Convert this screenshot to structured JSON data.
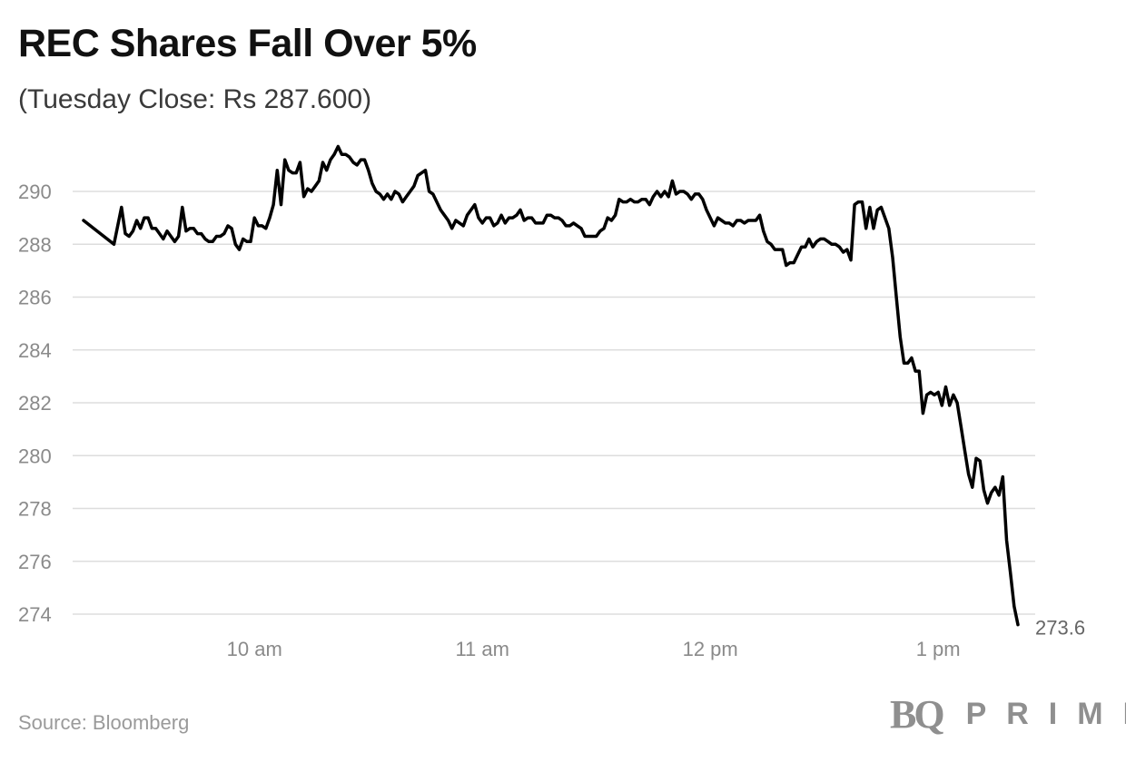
{
  "header": {
    "title": "REC Shares Fall Over 5%",
    "subtitle": "(Tuesday Close: Rs 287.600)"
  },
  "footer": {
    "source": "Source: Bloomberg",
    "logo_mark": "BQ",
    "logo_word": "PRIME"
  },
  "colors": {
    "line": "#000000",
    "grid": "#dddddd",
    "axis_text": "#8a8a8a"
  },
  "chart_data": {
    "type": "line",
    "title": "REC Shares Fall Over 5%",
    "subtitle": "(Tuesday Close: Rs 287.600)",
    "xlabel": "",
    "ylabel": "",
    "grid": true,
    "legend": "none",
    "x_unit": "minutes since 9:00",
    "xlim": [
      15,
      320
    ],
    "ylim": [
      273.4,
      291.8
    ],
    "yticks": [
      274,
      276,
      278,
      280,
      282,
      284,
      286,
      288,
      290
    ],
    "xticks": [
      {
        "value": 60,
        "label": "10 am"
      },
      {
        "value": 120,
        "label": "11 am"
      },
      {
        "value": 180,
        "label": "12 pm"
      },
      {
        "value": 240,
        "label": "1 pm"
      }
    ],
    "end_label": "273.6",
    "series": [
      {
        "points": [
          [
            15,
            288.9
          ],
          [
            23,
            288.0
          ],
          [
            25,
            289.4
          ],
          [
            26,
            288.4
          ],
          [
            27,
            288.3
          ],
          [
            28,
            288.5
          ],
          [
            29,
            288.9
          ],
          [
            30,
            288.6
          ],
          [
            31,
            289.0
          ],
          [
            32,
            289.0
          ],
          [
            33,
            288.6
          ],
          [
            34,
            288.6
          ],
          [
            35,
            288.4
          ],
          [
            36,
            288.2
          ],
          [
            37,
            288.5
          ],
          [
            38,
            288.3
          ],
          [
            39,
            288.1
          ],
          [
            40,
            288.3
          ],
          [
            41,
            289.4
          ],
          [
            42,
            288.5
          ],
          [
            43,
            288.6
          ],
          [
            44,
            288.6
          ],
          [
            45,
            288.4
          ],
          [
            46,
            288.4
          ],
          [
            47,
            288.2
          ],
          [
            48,
            288.1
          ],
          [
            49,
            288.1
          ],
          [
            50,
            288.3
          ],
          [
            51,
            288.3
          ],
          [
            52,
            288.4
          ],
          [
            53,
            288.7
          ],
          [
            54,
            288.6
          ],
          [
            55,
            288.0
          ],
          [
            56,
            287.8
          ],
          [
            57,
            288.2
          ],
          [
            58,
            288.1
          ],
          [
            59,
            288.1
          ],
          [
            60,
            289.0
          ],
          [
            61,
            288.7
          ],
          [
            62,
            288.7
          ],
          [
            63,
            288.6
          ],
          [
            64,
            289.0
          ],
          [
            65,
            289.5
          ],
          [
            66,
            290.8
          ],
          [
            67,
            289.5
          ],
          [
            68,
            291.2
          ],
          [
            69,
            290.8
          ],
          [
            70,
            290.7
          ],
          [
            71,
            290.7
          ],
          [
            72,
            291.1
          ],
          [
            73,
            289.8
          ],
          [
            74,
            290.1
          ],
          [
            75,
            290.0
          ],
          [
            76,
            290.2
          ],
          [
            77,
            290.4
          ],
          [
            78,
            291.1
          ],
          [
            79,
            290.8
          ],
          [
            80,
            291.2
          ],
          [
            81,
            291.4
          ],
          [
            82,
            291.7
          ],
          [
            83,
            291.4
          ],
          [
            84,
            291.4
          ],
          [
            85,
            291.3
          ],
          [
            86,
            291.1
          ],
          [
            87,
            291.0
          ],
          [
            88,
            291.2
          ],
          [
            89,
            291.2
          ],
          [
            90,
            290.8
          ],
          [
            91,
            290.3
          ],
          [
            92,
            290.0
          ],
          [
            93,
            289.9
          ],
          [
            94,
            289.7
          ],
          [
            95,
            289.9
          ],
          [
            96,
            289.7
          ],
          [
            97,
            290.0
          ],
          [
            98,
            289.9
          ],
          [
            99,
            289.6
          ],
          [
            100,
            289.8
          ],
          [
            101,
            290.0
          ],
          [
            102,
            290.2
          ],
          [
            103,
            290.6
          ],
          [
            104,
            290.7
          ],
          [
            105,
            290.8
          ],
          [
            106,
            290.0
          ],
          [
            107,
            289.9
          ],
          [
            108,
            289.6
          ],
          [
            109,
            289.3
          ],
          [
            110,
            289.1
          ],
          [
            111,
            288.9
          ],
          [
            112,
            288.6
          ],
          [
            113,
            288.9
          ],
          [
            114,
            288.8
          ],
          [
            115,
            288.7
          ],
          [
            116,
            289.1
          ],
          [
            117,
            289.3
          ],
          [
            118,
            289.5
          ],
          [
            119,
            289.0
          ],
          [
            120,
            288.8
          ],
          [
            121,
            289.0
          ],
          [
            122,
            289.0
          ],
          [
            123,
            288.7
          ],
          [
            124,
            288.8
          ],
          [
            125,
            289.1
          ],
          [
            126,
            288.8
          ],
          [
            127,
            289.0
          ],
          [
            128,
            289.0
          ],
          [
            129,
            289.1
          ],
          [
            130,
            289.3
          ],
          [
            131,
            288.9
          ],
          [
            132,
            289.0
          ],
          [
            133,
            289.0
          ],
          [
            134,
            288.8
          ],
          [
            135,
            288.8
          ],
          [
            136,
            288.8
          ],
          [
            137,
            289.1
          ],
          [
            138,
            289.1
          ],
          [
            139,
            289.0
          ],
          [
            140,
            289.0
          ],
          [
            141,
            288.9
          ],
          [
            142,
            288.7
          ],
          [
            143,
            288.7
          ],
          [
            144,
            288.8
          ],
          [
            145,
            288.7
          ],
          [
            146,
            288.6
          ],
          [
            147,
            288.3
          ],
          [
            148,
            288.3
          ],
          [
            149,
            288.3
          ],
          [
            150,
            288.3
          ],
          [
            151,
            288.5
          ],
          [
            152,
            288.6
          ],
          [
            153,
            289.0
          ],
          [
            154,
            288.9
          ],
          [
            155,
            289.1
          ],
          [
            156,
            289.7
          ],
          [
            157,
            289.6
          ],
          [
            158,
            289.6
          ],
          [
            159,
            289.7
          ],
          [
            160,
            289.6
          ],
          [
            161,
            289.6
          ],
          [
            162,
            289.7
          ],
          [
            163,
            289.7
          ],
          [
            164,
            289.5
          ],
          [
            165,
            289.8
          ],
          [
            166,
            290.0
          ],
          [
            167,
            289.8
          ],
          [
            168,
            290.0
          ],
          [
            169,
            289.8
          ],
          [
            170,
            290.4
          ],
          [
            171,
            289.9
          ],
          [
            172,
            290.0
          ],
          [
            173,
            290.0
          ],
          [
            174,
            289.9
          ],
          [
            175,
            289.7
          ],
          [
            176,
            289.9
          ],
          [
            177,
            289.9
          ],
          [
            178,
            289.7
          ],
          [
            179,
            289.3
          ],
          [
            180,
            289.0
          ],
          [
            181,
            288.7
          ],
          [
            182,
            289.0
          ],
          [
            183,
            288.9
          ],
          [
            184,
            288.8
          ],
          [
            185,
            288.8
          ],
          [
            186,
            288.7
          ],
          [
            187,
            288.9
          ],
          [
            188,
            288.9
          ],
          [
            189,
            288.8
          ],
          [
            190,
            288.9
          ],
          [
            191,
            288.9
          ],
          [
            192,
            288.9
          ],
          [
            193,
            289.1
          ],
          [
            194,
            288.5
          ],
          [
            195,
            288.1
          ],
          [
            196,
            288.0
          ],
          [
            197,
            287.8
          ],
          [
            198,
            287.8
          ],
          [
            199,
            287.8
          ],
          [
            200,
            287.2
          ],
          [
            201,
            287.3
          ],
          [
            202,
            287.3
          ],
          [
            203,
            287.6
          ],
          [
            204,
            287.9
          ],
          [
            205,
            287.9
          ],
          [
            206,
            288.2
          ],
          [
            207,
            287.9
          ],
          [
            208,
            288.1
          ],
          [
            209,
            288.2
          ],
          [
            210,
            288.2
          ],
          [
            211,
            288.1
          ],
          [
            212,
            288.0
          ],
          [
            213,
            288.0
          ],
          [
            214,
            287.9
          ],
          [
            215,
            287.7
          ],
          [
            216,
            287.8
          ],
          [
            217,
            287.4
          ],
          [
            218,
            289.5
          ],
          [
            219,
            289.6
          ],
          [
            220,
            289.6
          ],
          [
            221,
            288.6
          ],
          [
            222,
            289.4
          ],
          [
            223,
            288.6
          ],
          [
            224,
            289.3
          ],
          [
            225,
            289.4
          ],
          [
            226,
            289.0
          ],
          [
            227,
            288.6
          ],
          [
            228,
            287.5
          ],
          [
            229,
            286.0
          ],
          [
            230,
            284.5
          ],
          [
            231,
            283.5
          ],
          [
            232,
            283.5
          ],
          [
            233,
            283.7
          ],
          [
            234,
            283.2
          ],
          [
            235,
            283.2
          ],
          [
            236,
            281.6
          ],
          [
            237,
            282.3
          ],
          [
            238,
            282.4
          ],
          [
            239,
            282.3
          ],
          [
            240,
            282.4
          ],
          [
            241,
            281.9
          ],
          [
            242,
            282.6
          ],
          [
            243,
            281.9
          ],
          [
            244,
            282.3
          ],
          [
            245,
            282.0
          ],
          [
            246,
            281.1
          ],
          [
            247,
            280.2
          ],
          [
            248,
            279.3
          ],
          [
            249,
            278.8
          ],
          [
            250,
            279.9
          ],
          [
            251,
            279.8
          ],
          [
            252,
            278.7
          ],
          [
            253,
            278.2
          ],
          [
            254,
            278.6
          ],
          [
            255,
            278.8
          ],
          [
            256,
            278.5
          ],
          [
            257,
            279.2
          ],
          [
            258,
            276.8
          ],
          [
            259,
            275.6
          ],
          [
            260,
            274.3
          ],
          [
            261,
            273.6
          ]
        ]
      }
    ]
  }
}
